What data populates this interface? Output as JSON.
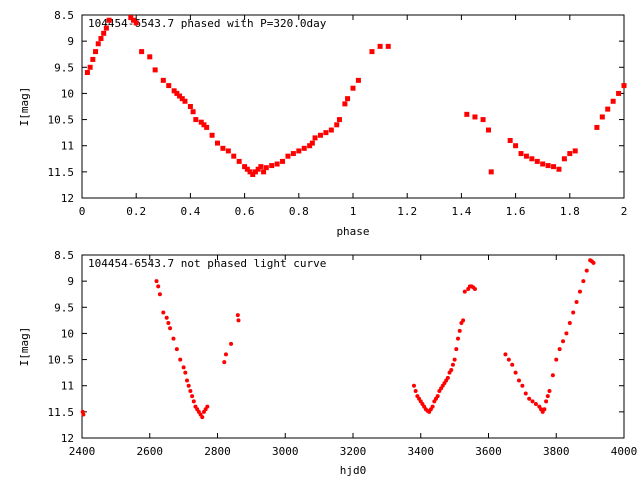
{
  "chart_data": [
    {
      "type": "scatter",
      "title": "104454-6543.7 phased with P=320.0day",
      "xlabel": "phase",
      "ylabel": "I[mag]",
      "xlim": [
        0,
        2
      ],
      "ylim": [
        12,
        8.5
      ],
      "y_inverted": true,
      "xticks": [
        "0",
        "0.2",
        "0.4",
        "0.6",
        "0.8",
        "1",
        "1.2",
        "1.4",
        "1.6",
        "1.8",
        "2"
      ],
      "yticks": [
        "8.5",
        "9",
        "9.5",
        "10",
        "10.5",
        "11",
        "11.5",
        "12"
      ],
      "marker_color": "#ff0000",
      "grid": false,
      "series": [
        {
          "x": [
            0.02,
            0.03,
            0.04,
            0.05,
            0.06,
            0.07,
            0.08,
            0.09,
            0.1,
            0.18,
            0.19,
            0.2,
            0.22,
            0.25,
            0.27,
            0.3,
            0.32,
            0.34,
            0.35,
            0.36,
            0.37,
            0.38,
            0.4,
            0.41,
            0.42,
            0.44,
            0.45,
            0.46,
            0.48,
            0.5,
            0.52,
            0.54,
            0.56,
            0.58,
            0.6,
            0.61,
            0.62,
            0.63,
            0.64,
            0.65,
            0.66,
            0.67,
            0.68,
            0.7,
            0.72,
            0.74,
            0.76,
            0.78,
            0.8,
            0.82,
            0.84,
            0.85,
            0.86,
            0.88,
            0.9,
            0.92,
            0.94,
            0.95,
            0.97,
            0.98,
            1.0,
            1.02,
            1.07,
            1.1,
            1.13,
            1.42,
            1.45,
            1.48,
            1.5,
            1.51,
            1.58,
            1.6,
            1.62,
            1.64,
            1.66,
            1.68,
            1.7,
            1.72,
            1.74,
            1.76,
            1.78,
            1.8,
            1.82,
            1.9,
            1.92,
            1.94,
            1.96,
            1.98,
            2.0
          ],
          "y": [
            9.6,
            9.5,
            9.35,
            9.2,
            9.05,
            8.95,
            8.85,
            8.75,
            8.6,
            8.55,
            8.6,
            8.65,
            9.2,
            9.3,
            9.55,
            9.75,
            9.85,
            9.95,
            10.0,
            10.05,
            10.1,
            10.15,
            10.25,
            10.35,
            10.5,
            10.55,
            10.6,
            10.65,
            10.8,
            10.95,
            11.05,
            11.1,
            11.2,
            11.3,
            11.4,
            11.45,
            11.5,
            11.55,
            11.5,
            11.45,
            11.4,
            11.5,
            11.42,
            11.38,
            11.35,
            11.3,
            11.2,
            11.15,
            11.1,
            11.05,
            11.0,
            10.95,
            10.85,
            10.8,
            10.75,
            10.7,
            10.6,
            10.5,
            10.2,
            10.1,
            9.9,
            9.75,
            9.2,
            9.1,
            9.1,
            10.4,
            10.45,
            10.5,
            10.7,
            11.5,
            10.9,
            11.0,
            11.15,
            11.2,
            11.25,
            11.3,
            11.35,
            11.38,
            11.4,
            11.45,
            11.25,
            11.15,
            11.1,
            10.65,
            10.45,
            10.3,
            10.15,
            10.0,
            9.85
          ]
        }
      ]
    },
    {
      "type": "scatter",
      "title": "104454-6543.7 not phased light curve",
      "xlabel": "hjd0",
      "ylabel": "I[mag]",
      "xlim": [
        2400,
        4000
      ],
      "ylim": [
        12,
        8.5
      ],
      "y_inverted": true,
      "xticks": [
        "2400",
        "2600",
        "2800",
        "3000",
        "3200",
        "3400",
        "3600",
        "3800",
        "4000"
      ],
      "yticks": [
        "8.5",
        "9",
        "9.5",
        "10",
        "10.5",
        "11",
        "11.5",
        "12"
      ],
      "marker_color": "#ff0000",
      "grid": false,
      "series": [
        {
          "x": [
            2402,
            2404,
            2620,
            2625,
            2630,
            2640,
            2650,
            2655,
            2660,
            2670,
            2680,
            2690,
            2700,
            2705,
            2710,
            2715,
            2720,
            2725,
            2730,
            2735,
            2740,
            2745,
            2750,
            2755,
            2760,
            2765,
            2770,
            2820,
            2825,
            2840,
            2860,
            2862,
            3380,
            3385,
            3390,
            3395,
            3400,
            3405,
            3410,
            3415,
            3420,
            3425,
            3430,
            3435,
            3440,
            3445,
            3450,
            3455,
            3460,
            3465,
            3470,
            3475,
            3480,
            3485,
            3490,
            3495,
            3500,
            3505,
            3510,
            3515,
            3520,
            3525,
            3530,
            3540,
            3545,
            3550,
            3555,
            3560,
            3650,
            3660,
            3670,
            3680,
            3690,
            3700,
            3710,
            3720,
            3730,
            3740,
            3750,
            3755,
            3760,
            3765,
            3770,
            3775,
            3780,
            3790,
            3800,
            3810,
            3820,
            3830,
            3840,
            3850,
            3860,
            3870,
            3880,
            3890,
            3900,
            3905,
            3910
          ],
          "y": [
            11.5,
            11.55,
            9.0,
            9.1,
            9.25,
            9.6,
            9.7,
            9.8,
            9.9,
            10.1,
            10.3,
            10.5,
            10.65,
            10.75,
            10.9,
            11.0,
            11.1,
            11.2,
            11.3,
            11.4,
            11.45,
            11.5,
            11.55,
            11.6,
            11.5,
            11.45,
            11.4,
            10.55,
            10.4,
            10.2,
            9.65,
            9.75,
            11.0,
            11.1,
            11.2,
            11.25,
            11.3,
            11.35,
            11.4,
            11.45,
            11.48,
            11.5,
            11.45,
            11.4,
            11.3,
            11.25,
            11.2,
            11.1,
            11.05,
            11.0,
            10.95,
            10.9,
            10.85,
            10.75,
            10.7,
            10.6,
            10.5,
            10.3,
            10.1,
            9.95,
            9.8,
            9.75,
            9.2,
            9.15,
            9.1,
            9.1,
            9.12,
            9.15,
            10.4,
            10.5,
            10.6,
            10.75,
            10.9,
            11.0,
            11.15,
            11.25,
            11.3,
            11.35,
            11.4,
            11.45,
            11.5,
            11.45,
            11.3,
            11.2,
            11.1,
            10.8,
            10.5,
            10.3,
            10.15,
            10.0,
            9.8,
            9.6,
            9.4,
            9.2,
            9.0,
            8.8,
            8.6,
            8.62,
            8.65
          ]
        }
      ]
    }
  ]
}
